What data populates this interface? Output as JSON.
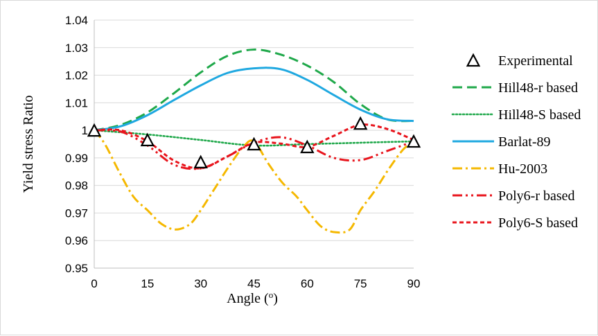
{
  "chart_data": {
    "type": "line",
    "xlabel": "Angle (",
    "xlabel_sup": "o",
    "xlabel_close": ")",
    "ylabel": "Yield stress Ratio",
    "xlim": [
      0,
      90
    ],
    "ylim": [
      0.95,
      1.04
    ],
    "x_ticks": [
      "0",
      "15",
      "30",
      "45",
      "60",
      "75",
      "90"
    ],
    "y_ticks": [
      "0.95",
      "0.96",
      "0.97",
      "0.98",
      "0.99",
      "1",
      "1.01",
      "1.02",
      "1.03",
      "1.04"
    ],
    "grid": "horizontal",
    "legend_position": "right",
    "experimental": {
      "name": "Experimental",
      "x": [
        0,
        15,
        30,
        45,
        60,
        75,
        90
      ],
      "y": [
        1.0,
        0.9965,
        0.9885,
        0.995,
        0.994,
        1.0025,
        0.996
      ]
    },
    "series": [
      {
        "name": "Hill48-r based",
        "color": "#1fa84a",
        "dash": "14,7",
        "x": [
          0,
          7.5,
          15,
          22.5,
          30,
          37.5,
          45,
          52.5,
          60,
          67.5,
          75,
          82.5,
          90
        ],
        "y": [
          1.0,
          1.002,
          1.0065,
          1.0135,
          1.021,
          1.027,
          1.0293,
          1.0275,
          1.0235,
          1.0175,
          1.0095,
          1.004,
          1.0034
        ]
      },
      {
        "name": "Hill48-S based",
        "color": "#1fa84a",
        "dash": "2,3",
        "x": [
          0,
          15,
          30,
          45,
          60,
          75,
          90
        ],
        "y": [
          1.0,
          0.9985,
          0.9965,
          0.9945,
          0.995,
          0.9955,
          0.996
        ]
      },
      {
        "name": "Barlat-89",
        "color": "#1fa8e0",
        "dash": "",
        "x": [
          0,
          7.5,
          15,
          22.5,
          30,
          37.5,
          45,
          52.5,
          60,
          67.5,
          75,
          82.5,
          90
        ],
        "y": [
          1.0,
          1.0015,
          1.0055,
          1.011,
          1.0163,
          1.0208,
          1.0225,
          1.0222,
          1.0183,
          1.0128,
          1.0075,
          1.004,
          1.0034
        ]
      },
      {
        "name": "Hu-2003",
        "color": "#f5b800",
        "dash": "14,5,3,5",
        "x": [
          0,
          3,
          7,
          11,
          15,
          19,
          23,
          27,
          30,
          34,
          38,
          42,
          45,
          49,
          53,
          57,
          60,
          64,
          68,
          72,
          75,
          79,
          83,
          87,
          90
        ],
        "y": [
          1.0,
          0.995,
          0.985,
          0.976,
          0.971,
          0.966,
          0.964,
          0.966,
          0.971,
          0.979,
          0.987,
          0.994,
          0.996,
          0.988,
          0.981,
          0.976,
          0.971,
          0.965,
          0.963,
          0.964,
          0.971,
          0.978,
          0.986,
          0.993,
          0.996
        ]
      },
      {
        "name": "Poly6-r based",
        "color": "#e8141c",
        "dash": "14,5,3,5,3,5",
        "x": [
          0,
          7.5,
          15,
          22.5,
          30,
          37.5,
          45,
          52.5,
          60,
          67.5,
          75,
          82.5,
          90
        ],
        "y": [
          1.0,
          0.9995,
          0.9945,
          0.9875,
          0.9862,
          0.9905,
          0.9955,
          0.9975,
          0.9945,
          0.99,
          0.9892,
          0.9925,
          0.996
        ]
      },
      {
        "name": "Poly6-S based",
        "color": "#e8141c",
        "dash": "6,4",
        "x": [
          0,
          7.5,
          15,
          22.5,
          30,
          37.5,
          45,
          52.5,
          60,
          67.5,
          75,
          82.5,
          90
        ],
        "y": [
          1.0,
          1.0,
          0.996,
          0.989,
          0.9862,
          0.9905,
          0.9955,
          0.9952,
          0.994,
          0.998,
          1.002,
          1.0005,
          0.9965
        ]
      }
    ]
  }
}
